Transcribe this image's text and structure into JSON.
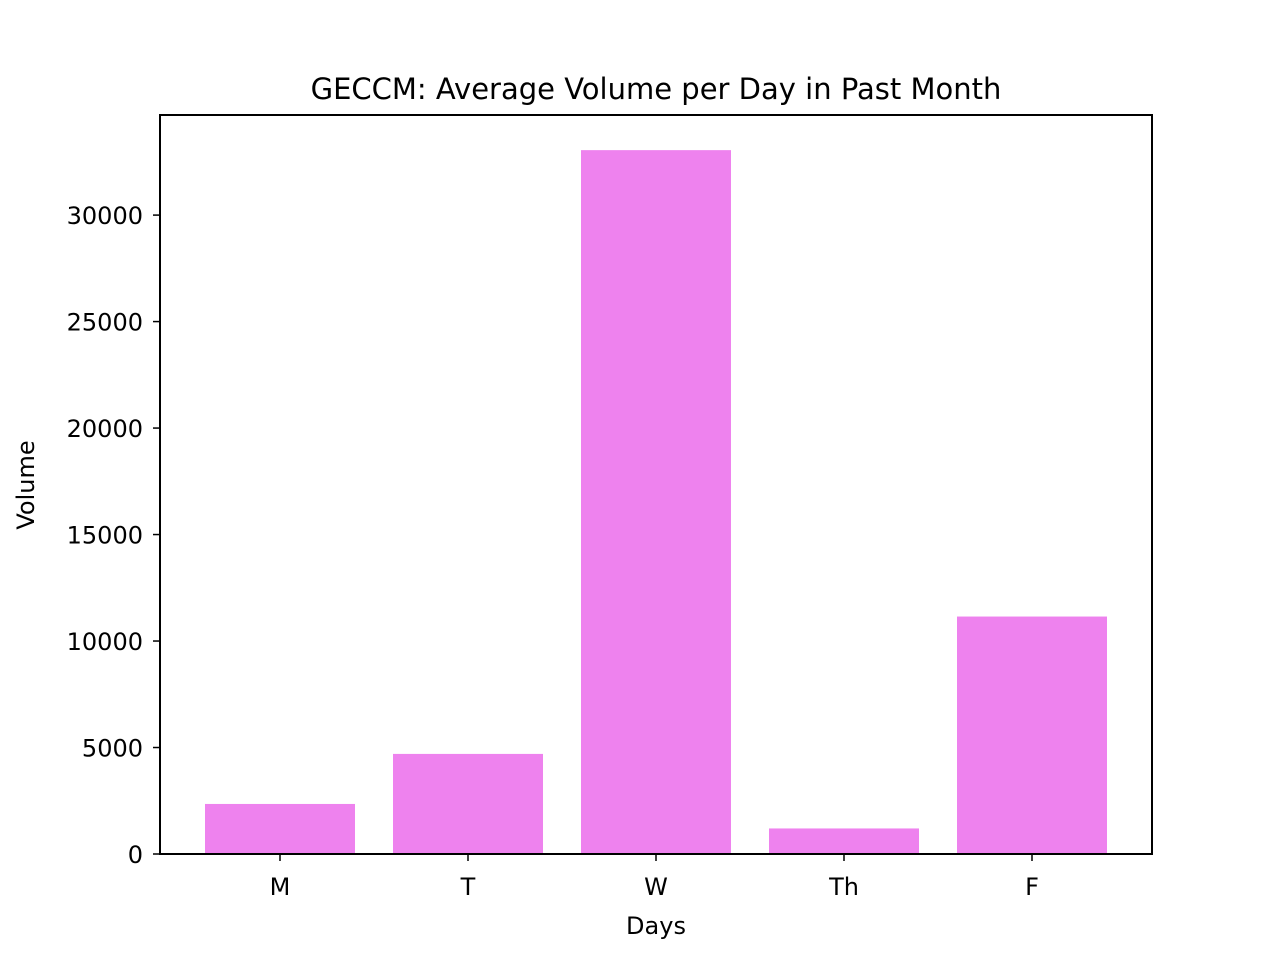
{
  "chart_data": {
    "type": "bar",
    "title": "GECCM: Average Volume per Day in Past Month",
    "xlabel": "Days",
    "ylabel": "Volume",
    "categories": [
      "M",
      "T",
      "W",
      "Th",
      "F"
    ],
    "values": [
      2350,
      4700,
      33050,
      1200,
      11150
    ],
    "ylim": [
      0,
      34700
    ],
    "yticks": [
      0,
      5000,
      10000,
      15000,
      20000,
      25000,
      30000
    ],
    "bar_color": "#ee82ee",
    "grid": false,
    "legend": "none"
  }
}
